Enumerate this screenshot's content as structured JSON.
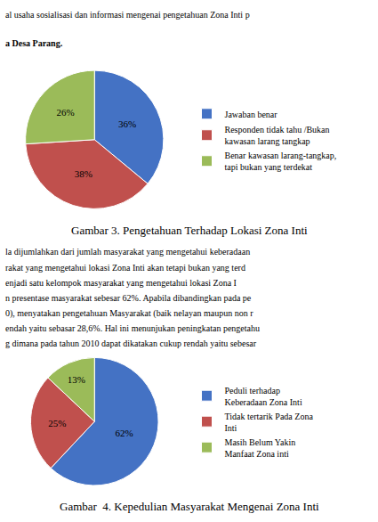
{
  "chart_data": [
    {
      "type": "pie",
      "title": "Gambar 3. Pengetahuan Terhadap Lokasi Zona Inti",
      "categories": [
        "Jawaban benar",
        "Responden tidak tahu /Bukan\nkawasan larang tangkap",
        "Benar kawasan larang-tangkap,\ntapi bukan yang terdekat"
      ],
      "values": [
        36,
        38,
        26
      ],
      "value_labels": [
        "36%",
        "38%",
        "26%"
      ],
      "colors": [
        "#4472C4",
        "#C0504D",
        "#9BBB59"
      ],
      "data_labels": true,
      "legend": "right",
      "annotations": [
        "al usaha sosialisasi dan informasi mengenai pengetahuan Zona Inti p",
        "a Desa Parang."
      ]
    },
    {
      "type": "pie",
      "title": "Gambar  4. Kepedulian Masyarakat Mengenai Zona Inti",
      "categories": [
        "Peduli terhadap\nKeberadaan Zona Inti",
        "Tidak tertarik Pada Zona\nInti",
        "Masih Belum Yakin\nManfaat Zona inti"
      ],
      "values": [
        62,
        25,
        13
      ],
      "value_labels": [
        "62%",
        "25%",
        "13%"
      ],
      "colors": [
        "#4472C4",
        "#C0504D",
        "#9BBB59"
      ],
      "data_labels": true,
      "legend": "right",
      "annotations": [
        "la dijumlahkan dari jumlah masyarakat yang mengetahui keberadaan",
        "rakat yang mengetahui lokasi Zona Inti akan tetapi bukan yang terd",
        "enjadi satu kelompok masyarakat yang mengetahui lokasi Zona I",
        "n presentase masyarakat sebesar 62%. Apabila dibandingkan pada pe",
        "0), menyatakan pengetahuan Masyarakat (baik nelayan maupun non r",
        "endah yaitu sebasar 28,6%. Hal ini menunjukan peningkatan pengetahu",
        "g dimana pada tahun 2010 dapat dikatakan cukup rendah yaitu sebesar"
      ]
    }
  ]
}
